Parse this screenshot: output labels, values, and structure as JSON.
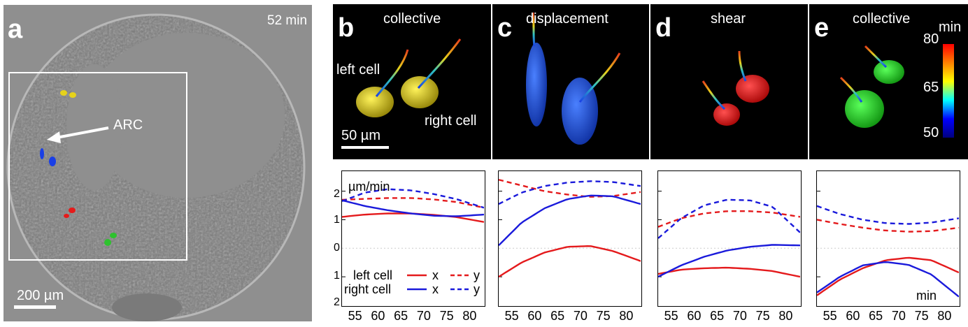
{
  "panel_a": {
    "label": "a",
    "time": "52 min",
    "arrow_label": "ARC",
    "scale_bar": "200 µm"
  },
  "panel_b": {
    "label": "b",
    "title": "collective",
    "left_cell": "left cell",
    "right_cell": "right cell",
    "scale_bar": "50 µm"
  },
  "panel_c": {
    "label": "c",
    "title": "displacement"
  },
  "panel_d": {
    "label": "d",
    "title": "shear"
  },
  "panel_e": {
    "label": "e",
    "title": "collective"
  },
  "colorbar": {
    "unit": "min",
    "ticks": [
      "80",
      "65",
      "50"
    ]
  },
  "plots": {
    "yunit": "µm/min",
    "xunit": "min",
    "ytick_labels": [
      "2",
      "1",
      "0",
      "1",
      "2"
    ],
    "xtick_labels": [
      "55",
      "60",
      "65",
      "70",
      "75",
      "80"
    ],
    "legend": {
      "left_cell": "left cell",
      "right_cell": "right cell",
      "x": "x",
      "y": "y"
    }
  },
  "colors": {
    "left_cell": "#e41a1c",
    "right_cell": "#1a1adb"
  },
  "chart_data": [
    {
      "type": "line",
      "panel": "b",
      "ylim": [
        -2,
        2.7
      ],
      "xlim": [
        52,
        83
      ],
      "x": [
        52,
        57,
        62,
        67,
        72,
        77,
        83
      ],
      "series": [
        {
          "values": [
            1.1,
            1.18,
            1.22,
            1.22,
            1.17,
            1.09,
            0.92
          ]
        },
        {
          "values": [
            1.7,
            1.73,
            1.76,
            1.76,
            1.71,
            1.62,
            1.42
          ]
        },
        {
          "values": [
            1.68,
            1.48,
            1.33,
            1.22,
            1.14,
            1.12,
            1.18
          ]
        },
        {
          "values": [
            1.65,
            1.95,
            2.07,
            2.03,
            1.9,
            1.72,
            1.42
          ]
        }
      ]
    },
    {
      "type": "line",
      "panel": "c",
      "ylim": [
        -2,
        2.7
      ],
      "xlim": [
        52,
        83
      ],
      "x": [
        52,
        57,
        62,
        67,
        72,
        77,
        83
      ],
      "series": [
        {
          "values": [
            -1.0,
            -0.5,
            -0.15,
            0.05,
            0.08,
            -0.1,
            -0.45
          ]
        },
        {
          "values": [
            2.4,
            2.2,
            2.0,
            1.88,
            1.8,
            1.83,
            1.97
          ]
        },
        {
          "values": [
            0.1,
            0.9,
            1.4,
            1.72,
            1.85,
            1.82,
            1.55
          ]
        },
        {
          "values": [
            1.55,
            1.95,
            2.18,
            2.3,
            2.35,
            2.32,
            2.18
          ]
        }
      ]
    },
    {
      "type": "line",
      "panel": "d",
      "ylim": [
        -2,
        2.7
      ],
      "xlim": [
        52,
        83
      ],
      "x": [
        52,
        57,
        62,
        67,
        72,
        77,
        83
      ],
      "series": [
        {
          "values": [
            -0.9,
            -0.75,
            -0.7,
            -0.68,
            -0.72,
            -0.8,
            -1.0
          ]
        },
        {
          "values": [
            0.75,
            1.05,
            1.22,
            1.3,
            1.3,
            1.25,
            1.1
          ]
        },
        {
          "values": [
            -1.0,
            -0.6,
            -0.3,
            -0.08,
            0.05,
            0.12,
            0.1
          ]
        },
        {
          "values": [
            0.35,
            1.05,
            1.5,
            1.7,
            1.68,
            1.45,
            0.55
          ]
        }
      ]
    },
    {
      "type": "line",
      "panel": "e",
      "ylim": [
        -2,
        2.7
      ],
      "xlim": [
        52,
        83
      ],
      "x": [
        52,
        57,
        62,
        67,
        72,
        77,
        83
      ],
      "series": [
        {
          "values": [
            -1.65,
            -1.1,
            -0.7,
            -0.42,
            -0.33,
            -0.42,
            -0.85
          ]
        },
        {
          "values": [
            1.0,
            0.85,
            0.72,
            0.62,
            0.58,
            0.6,
            0.72
          ]
        },
        {
          "values": [
            -1.55,
            -1.0,
            -0.6,
            -0.48,
            -0.58,
            -0.92,
            -1.7
          ]
        },
        {
          "values": [
            1.48,
            1.2,
            1.0,
            0.88,
            0.85,
            0.9,
            1.05
          ]
        }
      ]
    }
  ]
}
